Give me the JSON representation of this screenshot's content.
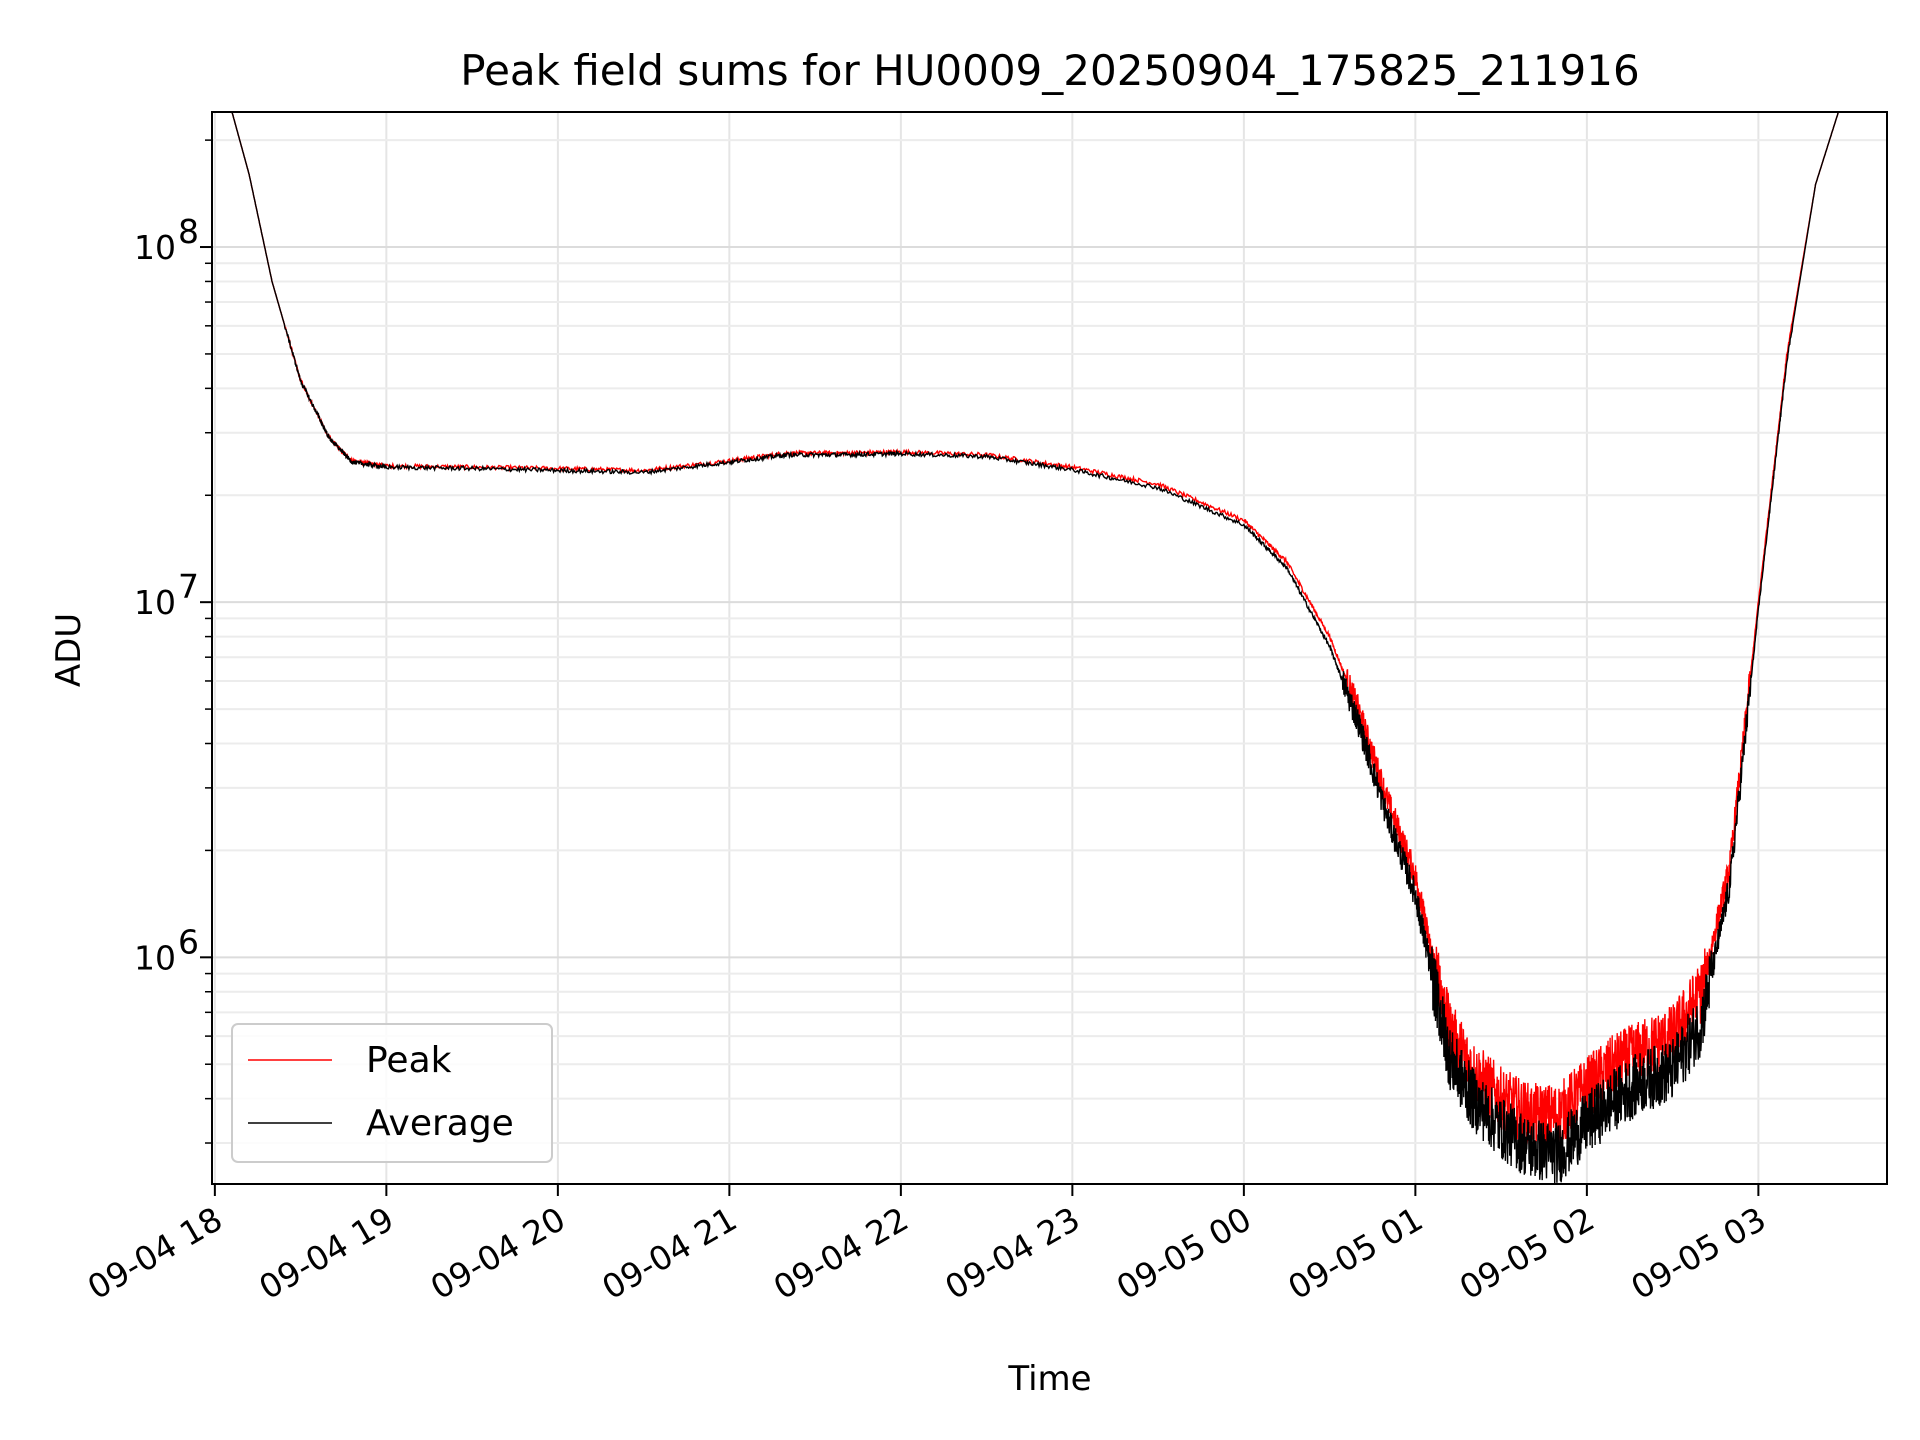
{
  "chart_data": {
    "type": "line",
    "title": "Peak field sums for HU0009_20250904_175825_211916",
    "xlabel": "Time",
    "ylabel": "ADU",
    "y_scale": "log",
    "ylim": [
      230000,
      240000000
    ],
    "xlim": [
      "2025-09-04 17:59",
      "2025-09-05 03:45"
    ],
    "grid": true,
    "legend_position": "lower-left",
    "x_ticks": [
      "09-04 18",
      "09-04 19",
      "09-04 20",
      "09-04 21",
      "09-04 22",
      "09-04 23",
      "09-05 00",
      "09-05 01",
      "09-05 02",
      "09-05 03"
    ],
    "x_tick_times": [
      "2025-09-04 18:00",
      "2025-09-04 19:00",
      "2025-09-04 20:00",
      "2025-09-04 21:00",
      "2025-09-04 22:00",
      "2025-09-04 23:00",
      "2025-09-05 00:00",
      "2025-09-05 01:00",
      "2025-09-05 02:00",
      "2025-09-05 03:00"
    ],
    "y_ticks": [
      {
        "base": "10",
        "exp": "6",
        "value": 1000000
      },
      {
        "base": "10",
        "exp": "7",
        "value": 10000000
      },
      {
        "base": "10",
        "exp": "8",
        "value": 100000000
      }
    ],
    "series": [
      {
        "name": "Peak",
        "color": "#ff0000",
        "x": [
          "2025-09-04 18:06",
          "2025-09-04 18:12",
          "2025-09-04 18:20",
          "2025-09-04 18:30",
          "2025-09-04 18:40",
          "2025-09-04 18:48",
          "2025-09-04 19:00",
          "2025-09-04 19:30",
          "2025-09-04 20:00",
          "2025-09-04 20:30",
          "2025-09-04 21:00",
          "2025-09-04 21:20",
          "2025-09-04 21:40",
          "2025-09-04 22:00",
          "2025-09-04 22:30",
          "2025-09-04 23:00",
          "2025-09-04 23:30",
          "2025-09-05 00:00",
          "2025-09-05 00:15",
          "2025-09-05 00:30",
          "2025-09-05 00:40",
          "2025-09-05 00:50",
          "2025-09-05 01:00",
          "2025-09-05 01:06",
          "2025-09-05 01:12",
          "2025-09-05 01:20",
          "2025-09-05 01:30",
          "2025-09-05 01:40",
          "2025-09-05 01:50",
          "2025-09-05 02:00",
          "2025-09-05 02:10",
          "2025-09-05 02:20",
          "2025-09-05 02:30",
          "2025-09-05 02:40",
          "2025-09-05 02:50",
          "2025-09-05 03:00",
          "2025-09-05 03:10",
          "2025-09-05 03:20",
          "2025-09-05 03:28"
        ],
        "values": [
          240000000,
          160000000,
          80000000,
          42000000,
          29000000,
          25000000,
          24200000,
          24000000,
          23800000,
          23500000,
          25000000,
          26300000,
          26300000,
          26500000,
          26000000,
          24000000,
          21500000,
          17000000,
          13000000,
          8000000,
          5000000,
          2800000,
          1700000,
          1000000,
          620000,
          480000,
          400000,
          360000,
          360000,
          430000,
          500000,
          550000,
          600000,
          800000,
          1800000,
          10000000,
          50000000,
          150000000,
          240000000
        ]
      },
      {
        "name": "Average",
        "color": "#000000",
        "x": [
          "2025-09-04 18:06",
          "2025-09-04 18:12",
          "2025-09-04 18:20",
          "2025-09-04 18:30",
          "2025-09-04 18:40",
          "2025-09-04 18:48",
          "2025-09-04 19:00",
          "2025-09-04 19:30",
          "2025-09-04 20:00",
          "2025-09-04 20:30",
          "2025-09-04 21:00",
          "2025-09-04 21:20",
          "2025-09-04 21:40",
          "2025-09-04 22:00",
          "2025-09-04 22:30",
          "2025-09-04 23:00",
          "2025-09-04 23:30",
          "2025-09-05 00:00",
          "2025-09-05 00:15",
          "2025-09-05 00:30",
          "2025-09-05 00:40",
          "2025-09-05 00:50",
          "2025-09-05 01:00",
          "2025-09-05 01:06",
          "2025-09-05 01:12",
          "2025-09-05 01:20",
          "2025-09-05 01:30",
          "2025-09-05 01:40",
          "2025-09-05 01:50",
          "2025-09-05 02:00",
          "2025-09-05 02:10",
          "2025-09-05 02:20",
          "2025-09-05 02:30",
          "2025-09-05 02:40",
          "2025-09-05 02:50",
          "2025-09-05 03:00",
          "2025-09-05 03:10",
          "2025-09-05 03:20",
          "2025-09-05 03:28"
        ],
        "values": [
          240000000,
          160000000,
          80000000,
          42000000,
          29000000,
          24800000,
          24000000,
          23800000,
          23500000,
          23200000,
          24800000,
          26000000,
          26000000,
          26200000,
          25700000,
          23600000,
          21000000,
          16500000,
          12500000,
          7500000,
          4600000,
          2500000,
          1500000,
          880000,
          520000,
          400000,
          330000,
          290000,
          280000,
          340000,
          400000,
          450000,
          480000,
          650000,
          1600000,
          9500000,
          48000000,
          150000000,
          240000000
        ]
      }
    ]
  }
}
